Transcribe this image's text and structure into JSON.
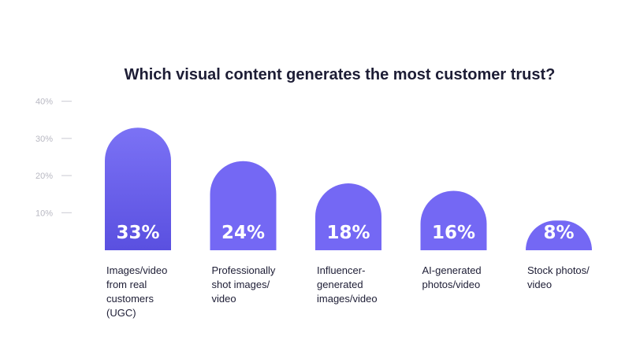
{
  "chart_data": {
    "type": "bar",
    "title": "Which visual content generates the most customer trust?",
    "categories": [
      "Images/video from real customers (UGC)",
      "Professionally shot images/ video",
      "Influencer- generated images/video",
      "AI-generated photos/video",
      "Stock photos/ video"
    ],
    "category_lines": [
      [
        "Images/video",
        "from real",
        "customers",
        "(UGC)"
      ],
      [
        "Professionally",
        "shot images/",
        "video"
      ],
      [
        "Influencer-",
        "generated",
        "images/video"
      ],
      [
        "AI-generated",
        "photos/video"
      ],
      [
        "Stock photos/",
        "video"
      ]
    ],
    "values": [
      33,
      24,
      18,
      16,
      8
    ],
    "value_labels": [
      "33%",
      "24%",
      "18%",
      "16%",
      "8%"
    ],
    "yticks": [
      10,
      20,
      30,
      40
    ],
    "ytick_labels": [
      "10%",
      "20%",
      "30%",
      "40%"
    ],
    "ylim": [
      0,
      40
    ],
    "xlabel": "",
    "ylabel": "",
    "grid": false,
    "legend": "none",
    "colors": {
      "highlight_top": "#7b72f5",
      "highlight_bottom": "#5a50e0",
      "bar": "#7468f4",
      "title": "#1d1d35",
      "tick": "#b8b8c2"
    }
  }
}
